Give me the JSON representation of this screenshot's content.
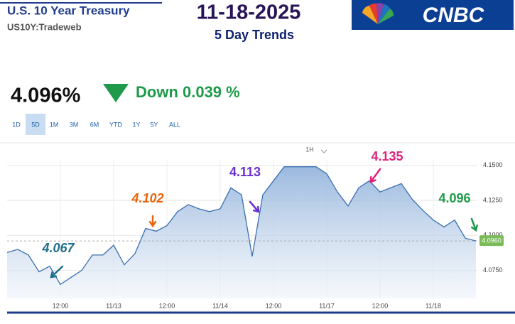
{
  "header": {
    "title": "U.S. 10 Year Treasury",
    "subtitle": "US10Y:Tradeweb",
    "date": "11-18-2025",
    "heading": "5 Day Trends",
    "logo": "CNBC"
  },
  "quote": {
    "price": "4.096%",
    "change": "Down 0.039 %"
  },
  "range_buttons": [
    "1D",
    "5D",
    "1M",
    "3M",
    "6M",
    "YTD",
    "1Y",
    "5Y",
    "ALL"
  ],
  "selected_range": "5D",
  "interval": "1H",
  "chart_data": {
    "type": "line",
    "color": "#3a6fb0",
    "categories": [
      null,
      null,
      null,
      null,
      null,
      "12:00",
      null,
      null,
      null,
      null,
      "11/13",
      null,
      null,
      null,
      null,
      "12:00",
      null,
      null,
      null,
      null,
      "11/14",
      null,
      null,
      null,
      null,
      "12:00",
      null,
      null,
      null,
      null,
      "11/17",
      null,
      null,
      null,
      null,
      "12:00",
      null,
      null,
      null,
      null,
      "11/18",
      null,
      null,
      null,
      null
    ],
    "values": [
      4.0878,
      4.09,
      4.086,
      4.074,
      4.078,
      4.065,
      4.07,
      4.075,
      4.086,
      4.086,
      4.093,
      4.079,
      4.087,
      4.105,
      4.103,
      4.107,
      4.117,
      4.122,
      4.119,
      4.117,
      4.119,
      4.134,
      4.129,
      4.085,
      4.129,
      4.139,
      4.149,
      4.149,
      4.149,
      4.149,
      4.144,
      4.131,
      4.121,
      4.134,
      4.139,
      4.131,
      4.134,
      4.137,
      4.126,
      4.118,
      4.111,
      4.106,
      4.111,
      4.098,
      4.096
    ],
    "ylim": [
      4.055,
      4.159
    ],
    "yticks": [
      {
        "value": 4.15,
        "label": "4.1500"
      },
      {
        "value": 4.125,
        "label": "4.1250"
      },
      {
        "value": 4.1,
        "label": "4.1000"
      },
      {
        "value": 4.075,
        "label": "4.0750"
      }
    ],
    "grid": true,
    "current_marker": {
      "value": 4.096,
      "label": "4.0960",
      "color": "#7cbb59"
    },
    "annotations": [
      {
        "text": "4.067",
        "color": "#1f6f8b"
      },
      {
        "text": "4.102",
        "color": "#e8650a"
      },
      {
        "text": "4.113",
        "color": "#6a2fd0"
      },
      {
        "text": "4.135",
        "color": "#e0207a"
      },
      {
        "text": "4.096",
        "color": "#1e9a4a"
      }
    ]
  }
}
